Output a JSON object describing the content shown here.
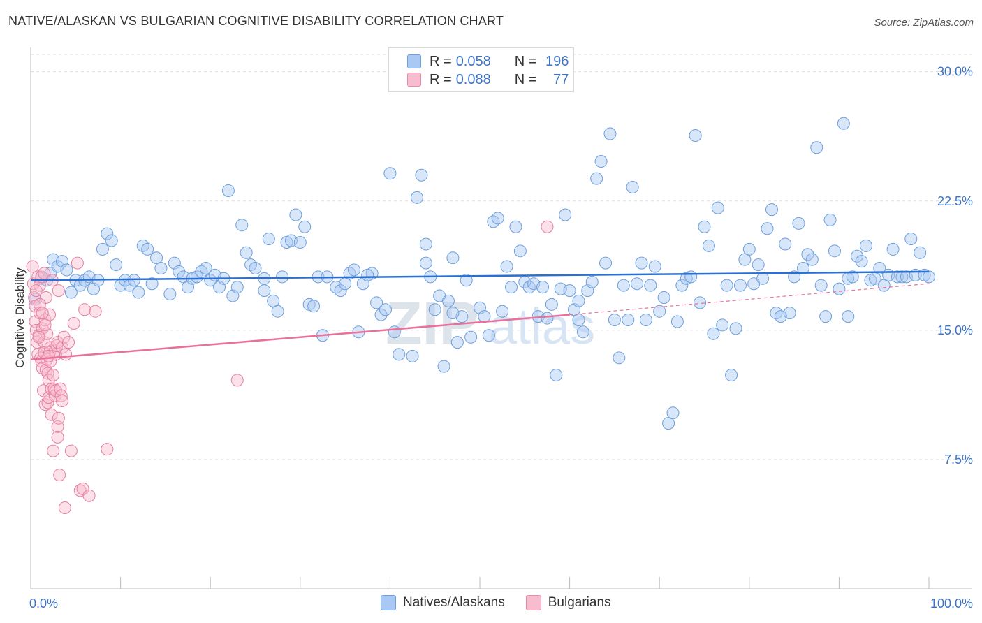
{
  "title": "NATIVE/ALASKAN VS BULGARIAN COGNITIVE DISABILITY CORRELATION CHART",
  "source": "Source: ZipAtlas.com",
  "watermark": {
    "zip": "ZIP",
    "atlas": "atlas"
  },
  "legend": {
    "r_label": "R =",
    "n_label": "N =",
    "series": [
      {
        "r": "0.058",
        "n": "196",
        "color": "#a9c8f3",
        "border": "#6d9fdc"
      },
      {
        "r": "0.088",
        "n": "77",
        "color": "#f8bccf",
        "border": "#e88aa9"
      }
    ]
  },
  "colors": {
    "blue_fill": "#a9c8f3",
    "blue_stroke": "#6d9fdc",
    "blue_line": "#2a6fd1",
    "pink_fill": "#f8bccf",
    "pink_stroke": "#e57fa2",
    "pink_line": "#e8709a",
    "tick_text": "#3b73c8",
    "grid": "#dddddd"
  },
  "chart_data": {
    "type": "scatter",
    "title": "NATIVE/ALASKAN VS BULGARIAN COGNITIVE DISABILITY CORRELATION CHART",
    "ylabel": "Cognitive Disability",
    "xlabel": "",
    "xlim": [
      0,
      100
    ],
    "ylim": [
      0,
      31
    ],
    "x_tick_labels": [
      "0.0%",
      "100.0%"
    ],
    "y_ticks": [
      7.5,
      15.0,
      22.5,
      30.0
    ],
    "y_tick_labels": [
      "7.5%",
      "15.0%",
      "22.5%",
      "30.0%"
    ],
    "grid": true,
    "series": [
      {
        "name": "Natives/Alaskans",
        "r": 0.058,
        "n": 196,
        "trend": {
          "x0": 0,
          "y0": 17.9,
          "x1": 100,
          "y1": 18.4
        },
        "points": [
          [
            0.5,
            16.8
          ],
          [
            1.2,
            18.0
          ],
          [
            1.8,
            17.9
          ],
          [
            2.2,
            18.3
          ],
          [
            2.5,
            19.1
          ],
          [
            3.0,
            18.7
          ],
          [
            3.5,
            19.0
          ],
          [
            4.0,
            18.5
          ],
          [
            4.5,
            17.2
          ],
          [
            5.0,
            17.9
          ],
          [
            5.5,
            17.6
          ],
          [
            6.0,
            17.9
          ],
          [
            6.5,
            18.1
          ],
          [
            7.0,
            17.4
          ],
          [
            7.5,
            17.9
          ],
          [
            8.0,
            19.7
          ],
          [
            8.5,
            20.6
          ],
          [
            9.0,
            20.2
          ],
          [
            9.5,
            18.8
          ],
          [
            10.0,
            17.6
          ],
          [
            10.5,
            17.9
          ],
          [
            11.0,
            17.6
          ],
          [
            11.5,
            17.9
          ],
          [
            12.0,
            17.2
          ],
          [
            12.5,
            19.9
          ],
          [
            13.0,
            19.7
          ],
          [
            13.5,
            17.7
          ],
          [
            14.0,
            19.2
          ],
          [
            14.5,
            18.6
          ],
          [
            15.5,
            17.1
          ],
          [
            16.0,
            18.9
          ],
          [
            16.5,
            18.4
          ],
          [
            17.0,
            18.1
          ],
          [
            17.5,
            17.5
          ],
          [
            18.0,
            18.0
          ],
          [
            18.5,
            18.1
          ],
          [
            19.0,
            18.4
          ],
          [
            19.5,
            18.6
          ],
          [
            20.0,
            17.9
          ],
          [
            20.5,
            18.2
          ],
          [
            21.0,
            17.5
          ],
          [
            21.5,
            18.0
          ],
          [
            22.0,
            23.1
          ],
          [
            22.5,
            17.0
          ],
          [
            23.5,
            21.1
          ],
          [
            24.0,
            19.5
          ],
          [
            24.5,
            18.8
          ],
          [
            25.0,
            18.6
          ],
          [
            26.0,
            17.3
          ],
          [
            26.5,
            20.3
          ],
          [
            27.0,
            16.7
          ],
          [
            27.5,
            16.1
          ],
          [
            28.0,
            18.1
          ],
          [
            28.5,
            20.1
          ],
          [
            29.0,
            20.2
          ],
          [
            29.5,
            21.7
          ],
          [
            30.0,
            20.1
          ],
          [
            30.5,
            21.0
          ],
          [
            31.0,
            16.5
          ],
          [
            31.5,
            16.4
          ],
          [
            32.0,
            18.1
          ],
          [
            32.5,
            14.7
          ],
          [
            33.0,
            18.1
          ],
          [
            34.0,
            17.5
          ],
          [
            34.5,
            17.3
          ],
          [
            35.0,
            17.7
          ],
          [
            35.5,
            18.3
          ],
          [
            36.0,
            18.5
          ],
          [
            36.5,
            14.9
          ],
          [
            37.0,
            17.7
          ],
          [
            38.0,
            18.3
          ],
          [
            38.5,
            16.6
          ],
          [
            39.0,
            15.9
          ],
          [
            39.5,
            16.2
          ],
          [
            40.0,
            24.1
          ],
          [
            40.5,
            14.9
          ],
          [
            41.0,
            13.6
          ],
          [
            42.5,
            13.5
          ],
          [
            43.0,
            22.7
          ],
          [
            43.5,
            24.0
          ],
          [
            44.0,
            18.9
          ],
          [
            44.5,
            18.1
          ],
          [
            45.0,
            16.2
          ],
          [
            45.5,
            17.0
          ],
          [
            46.0,
            12.9
          ],
          [
            46.5,
            16.7
          ],
          [
            47.0,
            19.2
          ],
          [
            47.5,
            14.3
          ],
          [
            48.0,
            15.8
          ],
          [
            48.5,
            17.9
          ],
          [
            49.0,
            14.6
          ],
          [
            50.0,
            16.3
          ],
          [
            50.5,
            15.8
          ],
          [
            51.0,
            14.7
          ],
          [
            51.5,
            21.3
          ],
          [
            52.0,
            21.5
          ],
          [
            53.0,
            18.7
          ],
          [
            53.5,
            17.5
          ],
          [
            54.0,
            21.0
          ],
          [
            54.5,
            19.6
          ],
          [
            55.0,
            17.8
          ],
          [
            55.5,
            17.5
          ],
          [
            56.0,
            17.7
          ],
          [
            56.5,
            15.8
          ],
          [
            57.0,
            17.5
          ],
          [
            57.5,
            15.7
          ],
          [
            58.5,
            12.4
          ],
          [
            59.0,
            17.4
          ],
          [
            59.5,
            21.7
          ],
          [
            60.0,
            17.3
          ],
          [
            60.5,
            16.2
          ],
          [
            61.0,
            16.7
          ],
          [
            61.5,
            14.9
          ],
          [
            62.0,
            17.3
          ],
          [
            62.5,
            17.8
          ],
          [
            63.0,
            23.8
          ],
          [
            63.5,
            24.8
          ],
          [
            64.0,
            18.9
          ],
          [
            64.5,
            26.4
          ],
          [
            65.0,
            15.6
          ],
          [
            65.5,
            13.4
          ],
          [
            66.5,
            15.6
          ],
          [
            67.0,
            23.3
          ],
          [
            67.5,
            17.7
          ],
          [
            68.0,
            18.9
          ],
          [
            68.5,
            15.6
          ],
          [
            69.0,
            17.6
          ],
          [
            69.5,
            18.7
          ],
          [
            70.0,
            16.1
          ],
          [
            70.5,
            16.9
          ],
          [
            71.0,
            9.6
          ],
          [
            71.5,
            10.2
          ],
          [
            72.0,
            15.5
          ],
          [
            72.5,
            17.6
          ],
          [
            73.0,
            18.0
          ],
          [
            73.5,
            18.1
          ],
          [
            74.0,
            26.3
          ],
          [
            74.5,
            16.6
          ],
          [
            75.0,
            21.0
          ],
          [
            75.5,
            19.9
          ],
          [
            76.0,
            14.8
          ],
          [
            76.5,
            22.1
          ],
          [
            77.0,
            15.3
          ],
          [
            77.5,
            17.6
          ],
          [
            78.0,
            12.4
          ],
          [
            78.5,
            15.1
          ],
          [
            79.0,
            17.6
          ],
          [
            79.5,
            19.1
          ],
          [
            80.0,
            19.7
          ],
          [
            80.5,
            17.7
          ],
          [
            81.0,
            18.8
          ],
          [
            81.5,
            18.0
          ],
          [
            82.0,
            20.9
          ],
          [
            82.5,
            22.0
          ],
          [
            83.0,
            16.0
          ],
          [
            83.5,
            15.8
          ],
          [
            84.0,
            20.0
          ],
          [
            84.5,
            16.0
          ],
          [
            85.0,
            18.1
          ],
          [
            85.5,
            21.2
          ],
          [
            86.0,
            18.6
          ],
          [
            86.5,
            19.4
          ],
          [
            87.0,
            19.1
          ],
          [
            87.5,
            25.6
          ],
          [
            88.0,
            17.6
          ],
          [
            88.5,
            15.8
          ],
          [
            89.0,
            21.4
          ],
          [
            89.5,
            19.6
          ],
          [
            90.0,
            17.4
          ],
          [
            90.5,
            27.0
          ],
          [
            91.0,
            18.0
          ],
          [
            91.5,
            18.1
          ],
          [
            92.0,
            19.3
          ],
          [
            92.5,
            19.0
          ],
          [
            93.0,
            19.9
          ],
          [
            93.5,
            17.9
          ],
          [
            94.0,
            18.0
          ],
          [
            94.5,
            18.6
          ],
          [
            95.0,
            17.6
          ],
          [
            95.5,
            18.2
          ],
          [
            96.0,
            19.7
          ],
          [
            96.5,
            18.1
          ],
          [
            97.0,
            18.1
          ],
          [
            97.5,
            18.1
          ],
          [
            98.0,
            20.3
          ],
          [
            98.5,
            18.2
          ],
          [
            99.0,
            19.5
          ],
          [
            99.5,
            18.2
          ],
          [
            100.0,
            18.1
          ],
          [
            66.0,
            17.6
          ],
          [
            52.5,
            16.1
          ],
          [
            23.0,
            17.5
          ],
          [
            26.0,
            18.0
          ],
          [
            37.5,
            18.2
          ],
          [
            44.0,
            20.0
          ],
          [
            58.0,
            16.5
          ],
          [
            47.0,
            16.0
          ],
          [
            61.0,
            15.6
          ],
          [
            91.0,
            15.8
          ]
        ]
      },
      {
        "name": "Bulgarians",
        "r": 0.088,
        "n": 77,
        "trend": {
          "x0": 0,
          "y0": 13.3,
          "x1": 60,
          "y1": 15.9
        },
        "trend_dashed": {
          "x0": 60,
          "y0": 15.9,
          "x1": 100,
          "y1": 17.7
        },
        "points": [
          [
            0.2,
            18.7
          ],
          [
            0.3,
            17.7
          ],
          [
            0.4,
            16.9
          ],
          [
            0.5,
            16.4
          ],
          [
            0.5,
            15.5
          ],
          [
            0.6,
            15.0
          ],
          [
            0.7,
            14.3
          ],
          [
            0.8,
            18.1
          ],
          [
            0.8,
            13.6
          ],
          [
            0.9,
            14.7
          ],
          [
            1.0,
            16.0
          ],
          [
            1.0,
            17.6
          ],
          [
            1.1,
            13.4
          ],
          [
            1.2,
            13.2
          ],
          [
            1.2,
            18.1
          ],
          [
            1.3,
            15.1
          ],
          [
            1.3,
            12.8
          ],
          [
            1.4,
            11.5
          ],
          [
            1.5,
            18.3
          ],
          [
            1.5,
            14.3
          ],
          [
            1.5,
            13.7
          ],
          [
            1.6,
            10.7
          ],
          [
            1.6,
            15.6
          ],
          [
            1.7,
            12.7
          ],
          [
            1.7,
            16.9
          ],
          [
            1.8,
            13.3
          ],
          [
            1.8,
            14.8
          ],
          [
            1.9,
            10.8
          ],
          [
            1.9,
            12.5
          ],
          [
            2.0,
            11.1
          ],
          [
            2.0,
            12.1
          ],
          [
            2.1,
            13.7
          ],
          [
            2.1,
            15.9
          ],
          [
            2.2,
            13.2
          ],
          [
            2.2,
            14.0
          ],
          [
            2.3,
            11.6
          ],
          [
            2.3,
            10.1
          ],
          [
            2.4,
            17.9
          ],
          [
            2.5,
            8.0
          ],
          [
            2.5,
            12.4
          ],
          [
            2.6,
            11.6
          ],
          [
            2.7,
            13.8
          ],
          [
            2.7,
            11.2
          ],
          [
            2.8,
            11.5
          ],
          [
            2.8,
            13.6
          ],
          [
            2.9,
            14.1
          ],
          [
            3.0,
            9.4
          ],
          [
            3.0,
            8.8
          ],
          [
            3.0,
            14.3
          ],
          [
            3.1,
            9.9
          ],
          [
            3.1,
            17.3
          ],
          [
            3.2,
            6.6
          ],
          [
            3.3,
            11.6
          ],
          [
            3.4,
            11.2
          ],
          [
            3.5,
            14.0
          ],
          [
            3.5,
            10.9
          ],
          [
            3.7,
            14.6
          ],
          [
            3.8,
            4.7
          ],
          [
            3.9,
            13.6
          ],
          [
            4.2,
            14.3
          ],
          [
            4.5,
            8.0
          ],
          [
            4.8,
            15.4
          ],
          [
            5.2,
            18.9
          ],
          [
            5.5,
            5.7
          ],
          [
            5.8,
            5.8
          ],
          [
            6.0,
            16.2
          ],
          [
            6.5,
            5.4
          ],
          [
            7.2,
            16.1
          ],
          [
            8.5,
            8.1
          ],
          [
            23.0,
            12.1
          ],
          [
            57.5,
            21.0
          ],
          [
            1.0,
            16.5
          ],
          [
            1.3,
            16.0
          ],
          [
            0.9,
            14.6
          ],
          [
            1.6,
            15.3
          ],
          [
            2.0,
            13.5
          ],
          [
            0.6,
            17.3
          ]
        ]
      }
    ]
  }
}
